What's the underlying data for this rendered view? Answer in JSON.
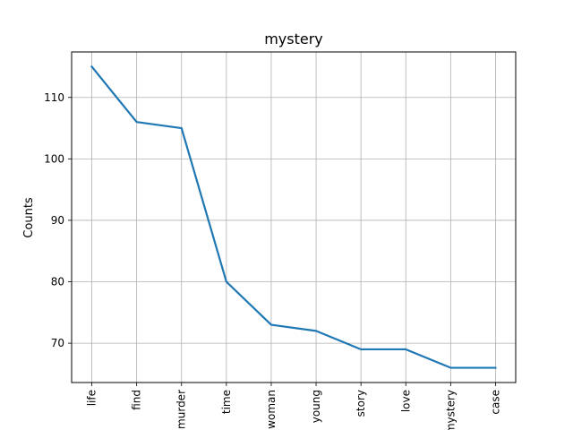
{
  "chart_data": {
    "type": "line",
    "title": "mystery",
    "xlabel": "",
    "ylabel": "Counts",
    "categories": [
      "life",
      "find",
      "murder",
      "time",
      "woman",
      "young",
      "story",
      "love",
      "mystery",
      "case"
    ],
    "series": [
      {
        "values": [
          115,
          106,
          105,
          80,
          73,
          72,
          69,
          69,
          66,
          66
        ]
      }
    ],
    "ylim": [
      63.6,
      117.4
    ],
    "yticks": [
      70,
      80,
      90,
      100,
      110
    ],
    "grid": true,
    "colors": {
      "line": "#1f77b4",
      "grid": "#b0b0b0"
    }
  }
}
